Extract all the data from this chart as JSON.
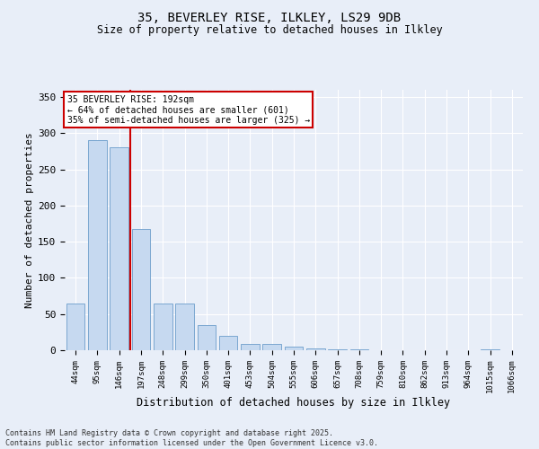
{
  "title_line1": "35, BEVERLEY RISE, ILKLEY, LS29 9DB",
  "title_line2": "Size of property relative to detached houses in Ilkley",
  "categories": [
    "44sqm",
    "95sqm",
    "146sqm",
    "197sqm",
    "248sqm",
    "299sqm",
    "350sqm",
    "401sqm",
    "453sqm",
    "504sqm",
    "555sqm",
    "606sqm",
    "657sqm",
    "708sqm",
    "759sqm",
    "810sqm",
    "862sqm",
    "913sqm",
    "964sqm",
    "1015sqm",
    "1066sqm"
  ],
  "values": [
    65,
    290,
    280,
    167,
    65,
    65,
    35,
    20,
    9,
    9,
    5,
    3,
    1,
    1,
    0,
    0,
    0,
    0,
    0,
    1,
    0
  ],
  "bar_color": "#c6d9f0",
  "bar_edge_color": "#7ba7d0",
  "xlabel": "Distribution of detached houses by size in Ilkley",
  "ylabel": "Number of detached properties",
  "ylim": [
    0,
    360
  ],
  "yticks": [
    0,
    50,
    100,
    150,
    200,
    250,
    300,
    350
  ],
  "vline_x_index": 3,
  "vline_color": "#cc0000",
  "annotation_line1": "35 BEVERLEY RISE: 192sqm",
  "annotation_line2": "← 64% of detached houses are smaller (601)",
  "annotation_line3": "35% of semi-detached houses are larger (325) →",
  "annotation_box_color": "#cc0000",
  "footer_line1": "Contains HM Land Registry data © Crown copyright and database right 2025.",
  "footer_line2": "Contains public sector information licensed under the Open Government Licence v3.0.",
  "bg_color": "#e8eef8",
  "plot_bg_color": "#e8eef8",
  "grid_color": "#ffffff"
}
